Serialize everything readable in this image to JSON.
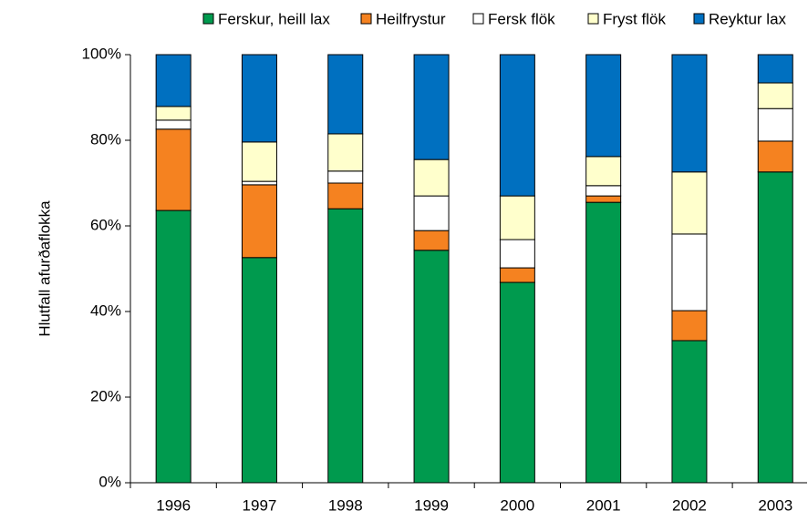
{
  "chart_data": {
    "type": "stacked_bar",
    "y_label": "Hlutfall afurðaflokka",
    "categories": [
      "1996",
      "1997",
      "1998",
      "1999",
      "2000",
      "2001",
      "2002",
      "2003"
    ],
    "series": [
      {
        "name": "Ferskur, heill lax",
        "color": "#009a4e",
        "values": [
          63.6,
          52.6,
          64.0,
          54.3,
          46.8,
          65.5,
          33.2,
          72.6
        ]
      },
      {
        "name": "Heilfrystur",
        "color": "#f58220",
        "values": [
          19.0,
          17.0,
          6.0,
          4.6,
          3.4,
          1.5,
          7.0,
          7.2
        ]
      },
      {
        "name": "Fersk flök",
        "color": "#ffffff",
        "values": [
          2.1,
          0.8,
          2.8,
          8.1,
          6.6,
          2.4,
          17.9,
          7.6
        ]
      },
      {
        "name": "Fryst flök",
        "color": "#ffffcc",
        "values": [
          3.2,
          9.2,
          8.7,
          8.5,
          10.2,
          6.8,
          14.5,
          6.0
        ]
      },
      {
        "name": "Reyktur lax",
        "color": "#0070c0",
        "values": [
          12.1,
          20.4,
          18.5,
          24.5,
          33.0,
          23.8,
          27.4,
          6.6
        ]
      }
    ],
    "ylim": [
      0,
      100
    ],
    "yticks": [
      {
        "value": 0,
        "label": "0%"
      },
      {
        "value": 20,
        "label": "20%"
      },
      {
        "value": 40,
        "label": "40%"
      },
      {
        "value": 60,
        "label": "60%"
      },
      {
        "value": 80,
        "label": "80%"
      },
      {
        "value": 100,
        "label": "100%"
      }
    ],
    "legend": "top"
  }
}
